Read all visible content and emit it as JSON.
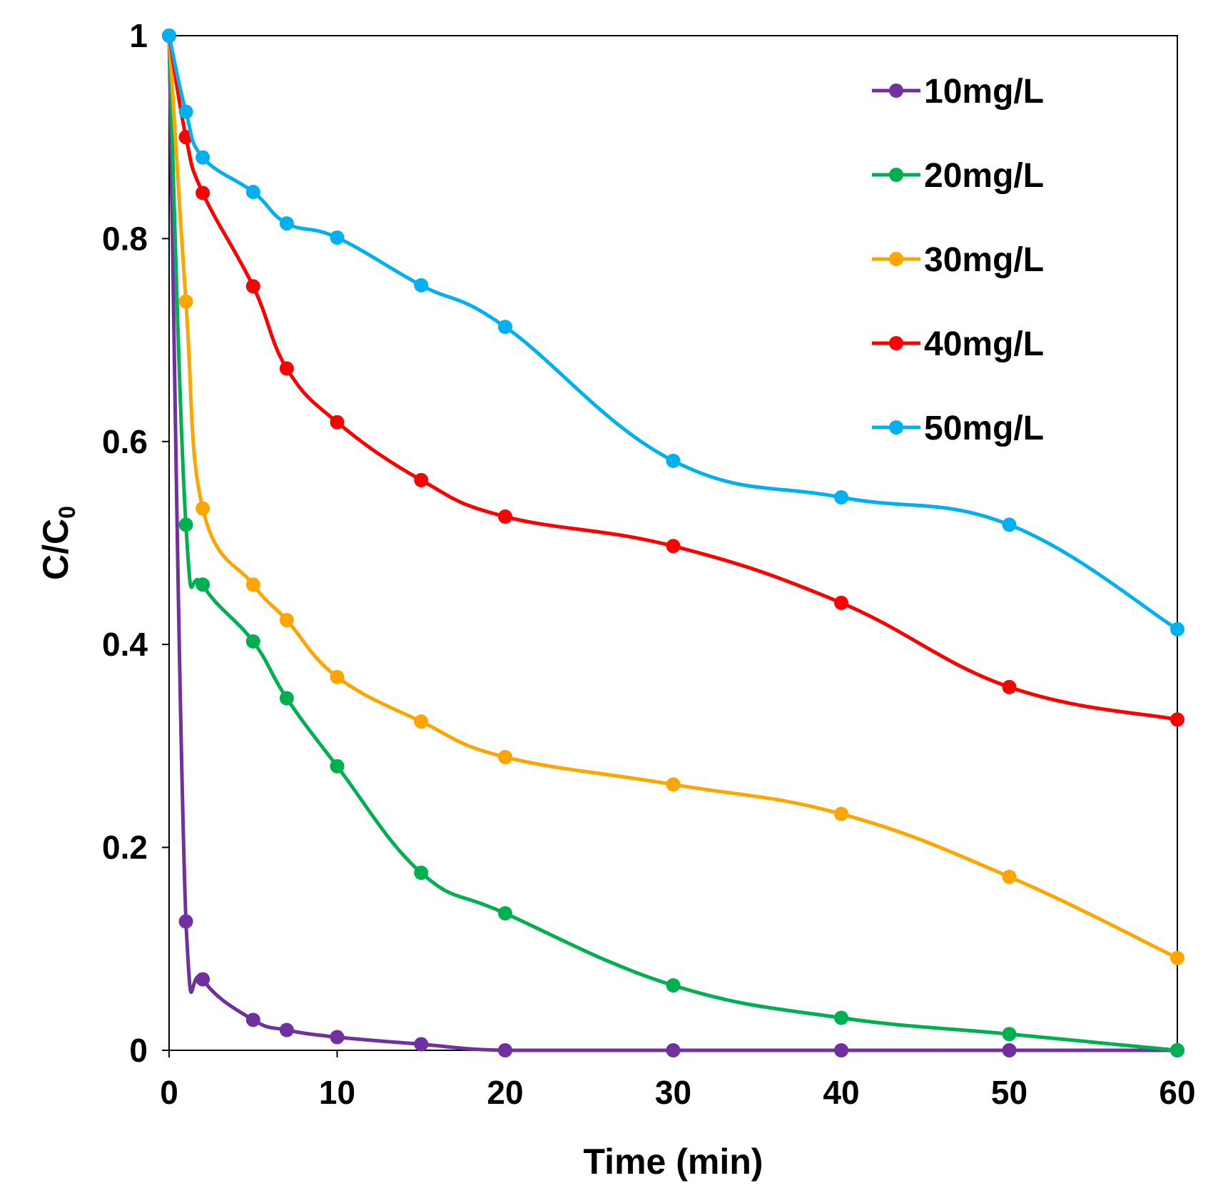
{
  "chart_data": {
    "type": "line",
    "title": "",
    "xlabel": "Time (min)",
    "ylabel_main": "C/C",
    "ylabel_sub": "0",
    "xlim": [
      0,
      60
    ],
    "ylim": [
      0,
      1
    ],
    "xticks": [
      0,
      10,
      20,
      30,
      40,
      50,
      60
    ],
    "xtick_labels": [
      "0",
      "10",
      "20",
      "30",
      "40",
      "50",
      "60"
    ],
    "yticks": [
      0,
      0.2,
      0.4,
      0.6,
      0.8,
      1
    ],
    "ytick_labels": [
      "0",
      "0.2",
      "0.4",
      "0.6",
      "0.8",
      "1"
    ],
    "grid": false,
    "legend_position": "top-right",
    "x": [
      0,
      1,
      2,
      5,
      7,
      10,
      15,
      20,
      30,
      40,
      50,
      60
    ],
    "series": [
      {
        "name": "10mg/L",
        "color": "#7030A0",
        "values": [
          1.0,
          0.127,
          0.07,
          0.03,
          0.02,
          0.013,
          0.006,
          0.0,
          0.0,
          0.0,
          0.0,
          0.0
        ]
      },
      {
        "name": "20mg/L",
        "color": "#00B050",
        "values": [
          1.0,
          0.518,
          0.459,
          0.403,
          0.347,
          0.28,
          0.175,
          0.135,
          0.064,
          0.032,
          0.016,
          0.0
        ]
      },
      {
        "name": "30mg/L",
        "color": "#FFA500",
        "values": [
          1.0,
          0.738,
          0.534,
          0.459,
          0.424,
          0.368,
          0.324,
          0.289,
          0.262,
          0.233,
          0.171,
          0.091
        ]
      },
      {
        "name": "40mg/L",
        "color": "#FF0000",
        "values": [
          1.0,
          0.9,
          0.845,
          0.753,
          0.672,
          0.619,
          0.562,
          0.526,
          0.497,
          0.441,
          0.358,
          0.326
        ]
      },
      {
        "name": "50mg/L",
        "color": "#00B0F0",
        "values": [
          1.0,
          0.925,
          0.88,
          0.846,
          0.815,
          0.801,
          0.754,
          0.713,
          0.581,
          0.545,
          0.518,
          0.415
        ]
      }
    ]
  }
}
